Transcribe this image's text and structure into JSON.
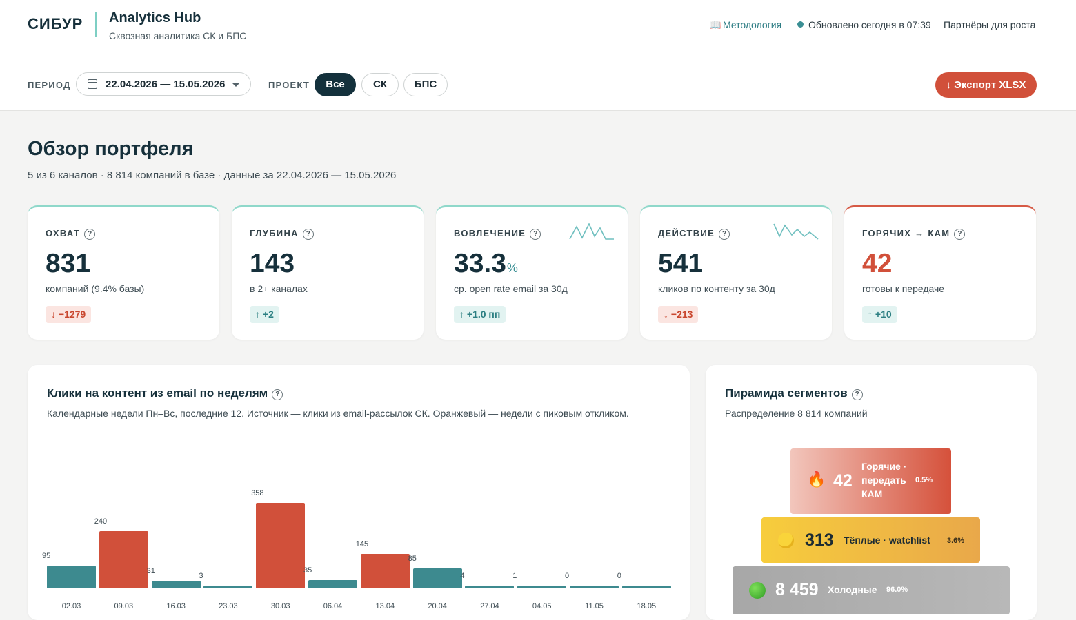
{
  "header": {
    "brand": "СИБУР",
    "app_title": "Analytics Hub",
    "app_subtitle": "Сквозная аналитика СК и БПС",
    "methodology": "Методология",
    "updated": "Обновлено сегодня в 07:39",
    "partners": "Партнёры для роста"
  },
  "filters": {
    "period_label": "ПЕРИОД",
    "period_value": "22.04.2026 — 15.05.2026",
    "project_label": "ПРОЕКТ",
    "projects": [
      "Все",
      "СК",
      "БПС"
    ],
    "active_project": "Все",
    "export_label": "↓ Экспорт XLSX"
  },
  "overview": {
    "title": "Обзор портфеля",
    "subtitle": "5 из 6 каналов · 8 814 компаний в базе · данные за 22.04.2026 — 15.05.2026"
  },
  "kpis": [
    {
      "label": "ОХВАТ",
      "value": "831",
      "unit": "",
      "desc": "компаний (9.4% базы)",
      "delta": "↓ −1279",
      "trend": "down",
      "sparkline": false
    },
    {
      "label": "ГЛУБИНА",
      "value": "143",
      "unit": "",
      "desc": "в 2+ каналах",
      "delta": "↑ +2",
      "trend": "up",
      "sparkline": false
    },
    {
      "label": "ВОВЛЕЧЕНИЕ",
      "value": "33.3",
      "unit": "%",
      "desc": "ср. open rate email за 30д",
      "delta": "↑ +1.0 пп",
      "trend": "up",
      "sparkline": true
    },
    {
      "label": "ДЕЙСТВИЕ",
      "value": "541",
      "unit": "",
      "desc": "кликов по контенту за 30д",
      "delta": "↓ −213",
      "trend": "down",
      "sparkline": true
    },
    {
      "label": "ГОРЯЧИХ → КАМ",
      "value": "42",
      "unit": "",
      "desc": "готовы к передаче",
      "delta": "↑ +10",
      "trend": "up",
      "sparkline": false
    }
  ],
  "clicks_panel": {
    "title": "Клики на контент из email по неделям",
    "subtitle": "Календарные недели Пн–Вс, последние 12. Источник — клики из email-рассылок СК. Оранжевый — недели с пиковым откликом."
  },
  "chart_data": {
    "type": "bar",
    "categories": [
      "02.03",
      "09.03",
      "16.03",
      "23.03",
      "30.03",
      "06.04",
      "13.04",
      "20.04",
      "27.04",
      "04.05",
      "11.05",
      "18.05"
    ],
    "values": [
      95,
      240,
      31,
      3,
      358,
      35,
      145,
      85,
      4,
      1,
      0,
      0
    ],
    "peak": [
      false,
      true,
      false,
      false,
      true,
      false,
      true,
      false,
      false,
      false,
      false,
      false
    ],
    "colors": {
      "normal": "#3d8a8f",
      "peak": "#d1503a"
    },
    "title": "Клики на контент из email по неделям",
    "xlabel": "",
    "ylabel": ""
  },
  "pyramid": {
    "title": "Пирамида сегментов",
    "subtitle": "Распределение 8 814 компаний",
    "tiers": [
      {
        "icon": "fire-icon",
        "count": "42",
        "name": "Горячие · передать КАМ",
        "pct": "0.5%"
      },
      {
        "icon": "yellow-circle-icon",
        "count": "313",
        "name": "Тёплые · watchlist",
        "pct": "3.6%"
      },
      {
        "icon": "green-circle-icon",
        "count": "8 459",
        "name": "Холодные",
        "pct": "96.0%"
      }
    ]
  },
  "colors": {
    "accent": "#d1503a",
    "teal": "#3d8a8f",
    "dark": "#14313c"
  }
}
